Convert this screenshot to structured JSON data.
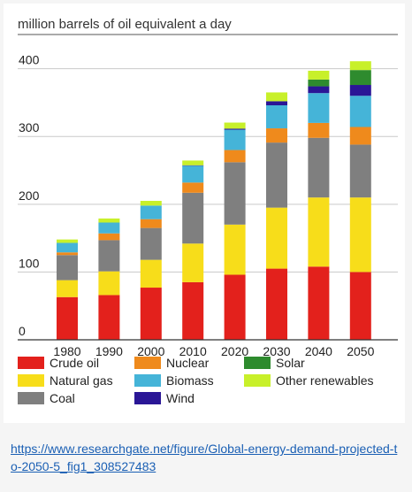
{
  "chart_data": {
    "type": "bar",
    "stacked": true,
    "title": "million barrels of oil equivalent a day",
    "xlabel": "",
    "ylabel": "",
    "categories": [
      "1980",
      "1990",
      "2000",
      "2010",
      "2020",
      "2030",
      "2040",
      "2050"
    ],
    "ylim": [
      0,
      440
    ],
    "yticks": [
      0,
      100,
      200,
      300,
      400
    ],
    "grid": true,
    "legend_position": "bottom",
    "series": [
      {
        "name": "Crude oil",
        "color": "#e3211c",
        "values": [
          63,
          66,
          77,
          85,
          96,
          105,
          108,
          100
        ]
      },
      {
        "name": "Natural gas",
        "color": "#f7dd1a",
        "values": [
          25,
          35,
          41,
          57,
          74,
          90,
          102,
          110
        ]
      },
      {
        "name": "Coal",
        "color": "#7f7f7f",
        "values": [
          37,
          46,
          47,
          75,
          92,
          96,
          88,
          78
        ]
      },
      {
        "name": "Nuclear",
        "color": "#ef8a1c",
        "values": [
          4,
          10,
          13,
          15,
          18,
          21,
          22,
          26
        ]
      },
      {
        "name": "Biomass",
        "color": "#45b4d8",
        "values": [
          14,
          16,
          20,
          25,
          30,
          34,
          44,
          46
        ]
      },
      {
        "name": "Wind",
        "color": "#2a1696",
        "values": [
          0,
          0,
          0,
          0.5,
          1.5,
          6,
          10,
          16
        ]
      },
      {
        "name": "Solar",
        "color": "#2e8b2e",
        "values": [
          0,
          0,
          0,
          0,
          0,
          0,
          10,
          22
        ]
      },
      {
        "name": "Other renewables",
        "color": "#c8f02a",
        "values": [
          5,
          6,
          7,
          7,
          9,
          13,
          13,
          13
        ]
      }
    ]
  },
  "source_link": "https://www.researchgate.net/figure/Global-energy-demand-projected-to-2050-5_fig1_308527483"
}
